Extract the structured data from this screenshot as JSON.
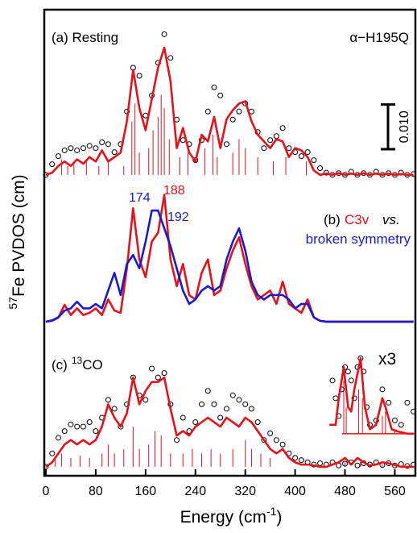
{
  "chart_data": [
    {
      "type": "line",
      "label": "(a) Resting",
      "title": "α−H195Q",
      "ylabel": {
        "superscript": 57,
        "text": "Fe PVDOS (cm)"
      },
      "scale_bar": {
        "value": 0.01,
        "label": "0.010"
      },
      "xlim": [
        0,
        593
      ],
      "ylim": [
        -0.002,
        0.037
      ],
      "x": [
        0,
        10,
        20,
        30,
        40,
        50,
        60,
        70,
        80,
        90,
        100,
        110,
        120,
        130,
        140,
        150,
        160,
        170,
        180,
        190,
        200,
        210,
        220,
        230,
        240,
        250,
        260,
        270,
        280,
        290,
        300,
        310,
        320,
        330,
        340,
        350,
        360,
        370,
        380,
        390,
        400,
        410,
        420,
        430,
        440,
        450,
        460,
        470,
        480,
        490,
        500,
        510,
        520,
        530,
        540,
        550,
        560,
        570,
        580,
        590
      ],
      "sticks": {
        "color": "#e8101a",
        "x": [
          25,
          35,
          45,
          65,
          85,
          100,
          125,
          138,
          143,
          150,
          165,
          172,
          180,
          185,
          190,
          198,
          215,
          228,
          255,
          268,
          275,
          300,
          310,
          320,
          340,
          365,
          385,
          418
        ],
        "values": [
          0.0035,
          0.002,
          0.0025,
          0.003,
          0.002,
          0.003,
          0.002,
          0.012,
          0.016,
          0.005,
          0.006,
          0.01,
          0.013,
          0.018,
          0.015,
          0.008,
          0.004,
          0.005,
          0.006,
          0.009,
          0.004,
          0.005,
          0.008,
          0.006,
          0.004,
          0.003,
          0.004,
          0.003
        ]
      },
      "series": [
        {
          "color": "#000000",
          "marker": "circle",
          "values": [
            0,
            0.0024,
            0.0042,
            0.0055,
            0.006,
            0.0055,
            0.006,
            0.0065,
            0.006,
            0.0073,
            0.0069,
            0.0051,
            0.0069,
            0.0142,
            0.024,
            0.0222,
            0.0133,
            0.0178,
            0.0251,
            0.0315,
            0.0262,
            0.0124,
            0.0078,
            0.0069,
            0.0033,
            0.0078,
            0.0142,
            0.0196,
            0.0178,
            0.0069,
            0.0124,
            0.0142,
            0.016,
            0.0142,
            0.0096,
            0.006,
            0.0078,
            0.0087,
            0.0105,
            0.006,
            0.0051,
            0.0042,
            0.0051,
            0.0033,
            0.0015,
            0.0005,
            0,
            0.0004,
            0,
            0.0007,
            0,
            0.0004,
            0,
            0.0007,
            0,
            0.0004,
            0,
            0.0005,
            0,
            0.0002
          ]
        },
        {
          "color": "#e8101a",
          "values": [
            0,
            0.0005,
            0.002,
            0.003,
            0.002,
            0.0035,
            0.0025,
            0.004,
            0.003,
            0.0055,
            0.003,
            0.004,
            0.005,
            0.012,
            0.0235,
            0.015,
            0.01,
            0.017,
            0.024,
            0.0285,
            0.021,
            0.006,
            0.0105,
            0.005,
            0.003,
            0.009,
            0.0075,
            0.013,
            0.006,
            0.0125,
            0.0145,
            0.016,
            0.0165,
            0.012,
            0.009,
            0.0075,
            0.006,
            0.008,
            0.0075,
            0.004,
            0.006,
            0.0055,
            0.004,
            0.001,
            0,
            0.0003,
            0,
            0.0004,
            0,
            0.0003,
            0,
            0.0004,
            0,
            0.0003,
            0,
            0.0003,
            0,
            0.0002,
            0,
            0
          ]
        }
      ]
    },
    {
      "type": "line",
      "label": "(b)",
      "connector": "vs.",
      "peak_labels": [
        174,
        188,
        192
      ],
      "xlim": [
        0,
        593
      ],
      "ylim": [
        -0.002,
        0.031
      ],
      "x": [
        0,
        10,
        20,
        30,
        40,
        50,
        60,
        70,
        80,
        90,
        100,
        110,
        120,
        130,
        140,
        150,
        160,
        170,
        180,
        190,
        200,
        210,
        220,
        230,
        240,
        250,
        260,
        270,
        280,
        290,
        300,
        310,
        320,
        330,
        340,
        350,
        360,
        370,
        380,
        390,
        400,
        410,
        420,
        430,
        440,
        450,
        460,
        470,
        480,
        490,
        500,
        510,
        520,
        530,
        540,
        550,
        560,
        570,
        580,
        590
      ],
      "series": [
        {
          "name": "C3v",
          "color": "#e8101a",
          "values": [
            0,
            0.0002,
            0.0009,
            0.0038,
            0.0015,
            0.003,
            0.0015,
            0.002,
            0.003,
            0.0015,
            0.005,
            0.0025,
            0.002,
            0.012,
            0.0255,
            0.014,
            0.01,
            0.018,
            0.02,
            0.0285,
            0.014,
            0.008,
            0.013,
            0.006,
            0.005,
            0.011,
            0.014,
            0.006,
            0.007,
            0.012,
            0.016,
            0.019,
            0.013,
            0.008,
            0.005,
            0.006,
            0.007,
            0.004,
            0.009,
            0.004,
            0.003,
            0.002,
            0.005,
            0.001,
            0.0002,
            0,
            0,
            0,
            0,
            0,
            0,
            0,
            0,
            0,
            0,
            0,
            0,
            0,
            0,
            0
          ]
        },
        {
          "name": "broken symmetry",
          "color": "#1a1acc",
          "values": [
            0,
            0.0003,
            0.001,
            0.0025,
            0.003,
            0.0045,
            0.003,
            0.003,
            0.004,
            0.003,
            0.007,
            0.011,
            0.006,
            0.013,
            0.015,
            0.012,
            0.018,
            0.025,
            0.025,
            0.021,
            0.017,
            0.012,
            0.007,
            0.004,
            0.005,
            0.007,
            0.008,
            0.007,
            0.008,
            0.014,
            0.018,
            0.021,
            0.016,
            0.009,
            0.006,
            0.005,
            0.006,
            0.006,
            0.006,
            0.005,
            0.003,
            0.004,
            0.004,
            0.001,
            0.0002,
            0,
            0,
            0,
            0,
            0,
            0,
            0,
            0,
            0,
            0,
            0,
            0,
            0,
            0,
            0
          ]
        }
      ]
    },
    {
      "type": "line",
      "label": "(c)",
      "isotope_mass": 13,
      "isotope": "CO",
      "xlabel": [
        "Energy (cm",
        "-1",
        ")"
      ],
      "xlim": [
        0,
        593
      ],
      "ylim": [
        -0.002,
        0.0305
      ],
      "xticks": [
        0,
        80,
        160,
        240,
        320,
        400,
        480,
        560
      ],
      "x": [
        0,
        10,
        20,
        30,
        40,
        50,
        60,
        70,
        80,
        90,
        100,
        110,
        120,
        130,
        140,
        150,
        160,
        170,
        180,
        190,
        200,
        210,
        220,
        230,
        240,
        250,
        260,
        270,
        280,
        290,
        300,
        310,
        320,
        330,
        340,
        350,
        360,
        370,
        380,
        390,
        400,
        410,
        420,
        430,
        440,
        450,
        460,
        470,
        480,
        490,
        500,
        510,
        520,
        530,
        540,
        550,
        560,
        570,
        580,
        590
      ],
      "sticks": {
        "color": "#e8101a",
        "x": [
          15,
          25,
          40,
          55,
          70,
          90,
          100,
          110,
          125,
          140,
          150,
          165,
          175,
          185,
          200,
          220,
          235,
          250,
          265,
          280,
          300,
          320,
          330,
          345,
          360,
          480,
          505,
          540
        ],
        "values": [
          0.002,
          0.003,
          0.002,
          0.0025,
          0.002,
          0.003,
          0.005,
          0.003,
          0.004,
          0.009,
          0.004,
          0.005,
          0.008,
          0.007,
          0.003,
          0.003,
          0.004,
          0.003,
          0.004,
          0.003,
          0.004,
          0.006,
          0.004,
          0.003,
          0.002,
          0.001,
          0.0012,
          0.0006
        ]
      },
      "series": [
        {
          "color": "#000000",
          "marker": "circle",
          "values": [
            0,
            0.003,
            0.0065,
            0.008,
            0.0095,
            0.009,
            0.009,
            0.01,
            0.008,
            0.011,
            0.015,
            0.013,
            0.009,
            0.014,
            0.02,
            0.016,
            0.015,
            0.022,
            0.02,
            0.021,
            0.014,
            0.006,
            0.011,
            0.008,
            0.01,
            0.014,
            0.017,
            0.014,
            0.011,
            0.013,
            0.016,
            0.015,
            0.014,
            0.013,
            0.01,
            0.006,
            0.0075,
            0.006,
            0.005,
            0.003,
            0.002,
            0.0015,
            0.001,
            0.0005,
            0.0008,
            0.0005,
            0.001,
            0.0003,
            0.0007,
            0.001,
            0.0003,
            0.0008,
            0.0005,
            0.001,
            0.0004,
            0.0008,
            0.0003,
            0.0006,
            0.0002,
            0.0005
          ]
        },
        {
          "color": "#e8101a",
          "values": [
            0,
            0.001,
            0.003,
            0.005,
            0.006,
            0.005,
            0.006,
            0.005,
            0.006,
            0.009,
            0.014,
            0.011,
            0.009,
            0.012,
            0.02,
            0.014,
            0.017,
            0.019,
            0.019,
            0.02,
            0.013,
            0.007,
            0.008,
            0.007,
            0.009,
            0.01,
            0.011,
            0.01,
            0.009,
            0.011,
            0.01,
            0.009,
            0.011,
            0.01,
            0.008,
            0.006,
            0.004,
            0.003,
            0.004,
            0.002,
            0.001,
            0.0005,
            0.0005,
            0.0003,
            0,
            0,
            0.0005,
            0.001,
            0.002,
            0.0005,
            0.002,
            0.001,
            0.0003,
            0.0005,
            0.001,
            0.0008,
            0.0004,
            0,
            0,
            0
          ]
        }
      ]
    },
    {
      "type": "line",
      "title": "x3",
      "xlim": [
        0,
        593
      ],
      "ylim": [
        -0.0013,
        0.0196
      ],
      "sticks": {
        "color": "#e8101a",
        "x": [
          478,
          482,
          502,
          508,
          540,
          545,
          560
        ],
        "values": [
          0.012,
          0.006,
          0.01,
          0.008,
          0.004,
          0.005,
          0.001
        ]
      },
      "series": [
        {
          "color": "#000000",
          "marker": "circle",
          "x": [
            460,
            465,
            470,
            475,
            480,
            485,
            490,
            495,
            500,
            505,
            510,
            515,
            520,
            530,
            540,
            550,
            560,
            570,
            580,
            590
          ],
          "values": [
            0.012,
            0.008,
            0.004,
            0.01,
            0.015,
            0.014,
            0.012,
            0.008,
            0.015,
            0.017,
            0.014,
            0.006,
            0.002,
            0.003,
            0.01,
            0.007,
            0.003,
            0.002,
            0.007,
            0.005
          ]
        },
        {
          "color": "#e8101a",
          "x": [
            455,
            465,
            470,
            478,
            485,
            490,
            495,
            505,
            512,
            520,
            530,
            540,
            545,
            555,
            565,
            580,
            590
          ],
          "values": [
            0.002,
            0.002,
            0.008,
            0.015,
            0.006,
            0.005,
            0.01,
            0.017,
            0.006,
            0.001,
            0.002,
            0.008,
            0.006,
            0.001,
            0.0005,
            0,
            0
          ]
        }
      ]
    }
  ]
}
